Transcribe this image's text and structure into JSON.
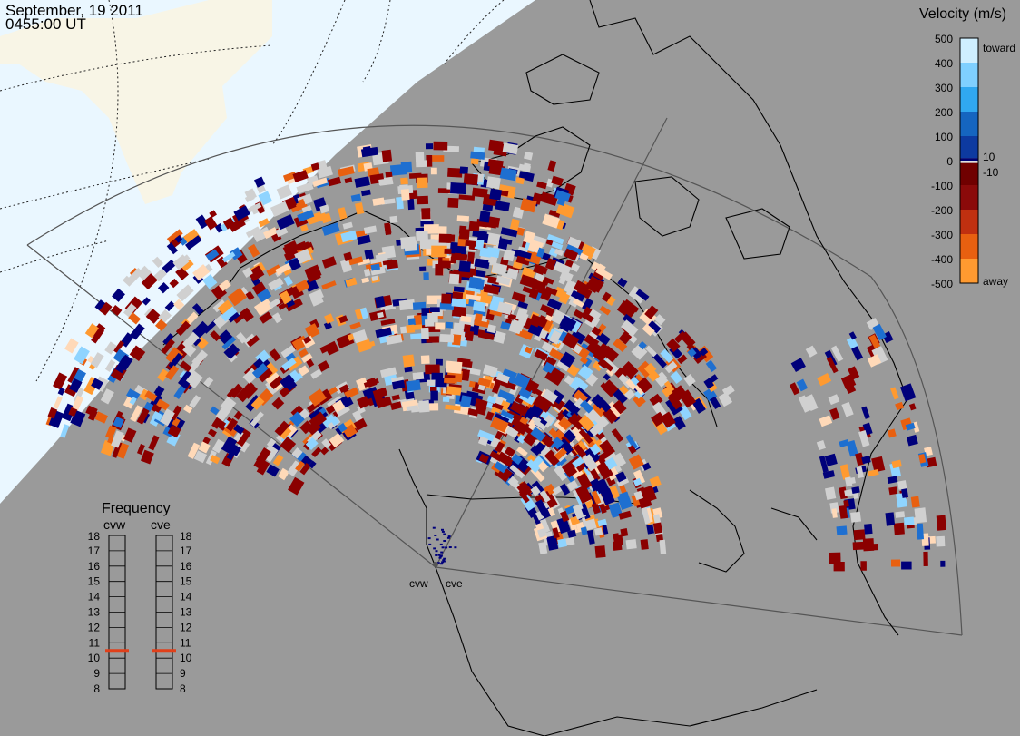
{
  "header": {
    "date": "September, 19 2011",
    "time": "0455:00 UT"
  },
  "colorbar": {
    "title": "Velocity (m/s)",
    "ticks": [
      "500",
      "400",
      "300",
      "200",
      "100",
      "10",
      "0",
      "-10",
      "-100",
      "-200",
      "-300",
      "-400",
      "-500"
    ],
    "toward_label": "toward",
    "away_label": "away",
    "colors": [
      "#ffe0c0",
      "#ffa020",
      "#e05010",
      "#901010",
      "#700000",
      "#d8d8d8",
      "#000080",
      "#1050c0",
      "#1e90ff",
      "#a0e0ff"
    ]
  },
  "frequency_panel": {
    "title": "Frequency",
    "radars": [
      {
        "code": "cvw",
        "value": 11
      },
      {
        "code": "cve",
        "value": 11
      }
    ],
    "scale": [
      "18",
      "17",
      "16",
      "15",
      "14",
      "13",
      "12",
      "11",
      "10",
      "9",
      "8"
    ],
    "indicator_color": "#e0401a"
  },
  "radar_sites": [
    "cvw",
    "cve"
  ],
  "map_colors": {
    "night": "#9a9a9a",
    "day_ocean": "#eaf7ff",
    "day_land": "#f8f5e6",
    "coastline": "#000000",
    "field_of_view": "#555555"
  }
}
